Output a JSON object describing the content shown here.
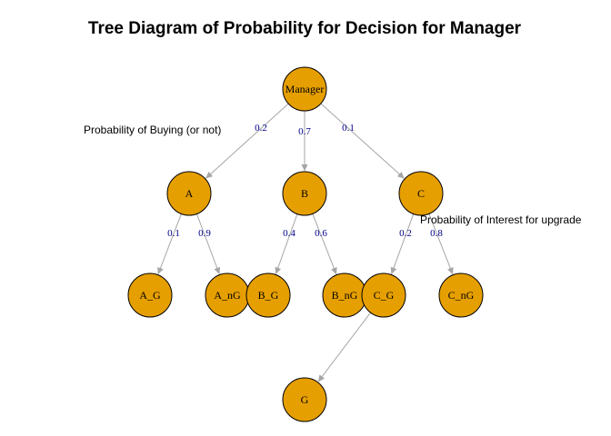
{
  "title": "Tree Diagram of Probability for Decision for Manager",
  "annotations": {
    "buying": "Probability of Buying (or not)",
    "upgrade": "Probability of Interest for upgrade"
  },
  "colors": {
    "node_fill": "#E69F00",
    "edge": "#A6A6A6",
    "edge_label": "#00008B",
    "text": "#000000"
  },
  "nodes": [
    {
      "id": "Manager",
      "label": "Manager"
    },
    {
      "id": "A",
      "label": "A"
    },
    {
      "id": "B",
      "label": "B"
    },
    {
      "id": "C",
      "label": "C"
    },
    {
      "id": "A_G",
      "label": "A_G"
    },
    {
      "id": "A_nG",
      "label": "A_nG"
    },
    {
      "id": "B_G",
      "label": "B_G"
    },
    {
      "id": "B_nG",
      "label": "B_nG"
    },
    {
      "id": "C_G",
      "label": "C_G"
    },
    {
      "id": "C_nG",
      "label": "C_nG"
    },
    {
      "id": "G",
      "label": "G"
    }
  ],
  "edges": [
    {
      "from": "Manager",
      "to": "A",
      "label": "0.2"
    },
    {
      "from": "Manager",
      "to": "B",
      "label": "0.7"
    },
    {
      "from": "Manager",
      "to": "C",
      "label": "0.1"
    },
    {
      "from": "A",
      "to": "A_G",
      "label": "0.1"
    },
    {
      "from": "A",
      "to": "A_nG",
      "label": "0.9"
    },
    {
      "from": "B",
      "to": "B_G",
      "label": "0.4"
    },
    {
      "from": "B",
      "to": "B_nG",
      "label": "0.6"
    },
    {
      "from": "C",
      "to": "C_G",
      "label": "0.2"
    },
    {
      "from": "C",
      "to": "C_nG",
      "label": "0.8"
    },
    {
      "from": "C_G",
      "to": "G",
      "label": ""
    }
  ]
}
